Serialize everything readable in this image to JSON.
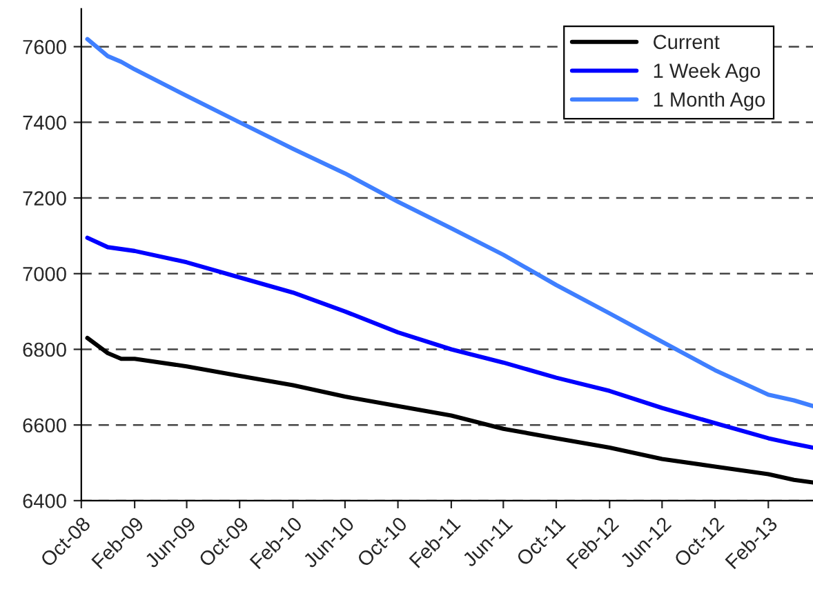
{
  "chart_data": {
    "type": "line",
    "x": [
      "2008-10-15",
      "2008-12-01",
      "2009-01-01",
      "2009-02-01",
      "2009-06-01",
      "2009-10-01",
      "2010-02-01",
      "2010-06-01",
      "2010-10-01",
      "2011-02-01",
      "2011-06-01",
      "2011-10-01",
      "2012-02-01",
      "2012-06-01",
      "2012-10-01",
      "2013-02-01",
      "2013-04-01",
      "2013-05-15"
    ],
    "series": [
      {
        "name": "Current",
        "color": "#000000",
        "values": [
          6830,
          6790,
          6775,
          6775,
          6755,
          6730,
          6705,
          6675,
          6650,
          6625,
          6590,
          6565,
          6540,
          6510,
          6490,
          6470,
          6455,
          6448
        ]
      },
      {
        "name": "1 Week Ago",
        "color": "#0000ff",
        "values": [
          7095,
          7070,
          7065,
          7060,
          7030,
          6990,
          6950,
          6900,
          6845,
          6800,
          6765,
          6725,
          6690,
          6645,
          6605,
          6565,
          6550,
          6540
        ]
      },
      {
        "name": "1 Month Ago",
        "color": "#3f7fff",
        "values": [
          7620,
          7575,
          7560,
          7540,
          7470,
          7400,
          7330,
          7265,
          7190,
          7120,
          7050,
          6970,
          6895,
          6820,
          6745,
          6680,
          6665,
          6650
        ]
      }
    ],
    "xlim": [
      "2008-10-01",
      "2013-05-15"
    ],
    "xticks": [
      {
        "value": "2008-10-01",
        "label": "Oct-08"
      },
      {
        "value": "2009-02-01",
        "label": "Feb-09"
      },
      {
        "value": "2009-06-01",
        "label": "Jun-09"
      },
      {
        "value": "2009-10-01",
        "label": "Oct-09"
      },
      {
        "value": "2010-02-01",
        "label": "Feb-10"
      },
      {
        "value": "2010-06-01",
        "label": "Jun-10"
      },
      {
        "value": "2010-10-01",
        "label": "Oct-10"
      },
      {
        "value": "2011-02-01",
        "label": "Feb-11"
      },
      {
        "value": "2011-06-01",
        "label": "Jun-11"
      },
      {
        "value": "2011-10-01",
        "label": "Oct-11"
      },
      {
        "value": "2012-02-01",
        "label": "Feb-12"
      },
      {
        "value": "2012-06-01",
        "label": "Jun-12"
      },
      {
        "value": "2012-10-01",
        "label": "Oct-12"
      },
      {
        "value": "2013-02-01",
        "label": "Feb-13"
      }
    ],
    "ylim": [
      6400,
      7700
    ],
    "yticks": [
      6400,
      6600,
      6800,
      7000,
      7200,
      7400,
      7600
    ],
    "grid": "y",
    "legend": "top right",
    "line_style": "solid",
    "marker": "none"
  }
}
